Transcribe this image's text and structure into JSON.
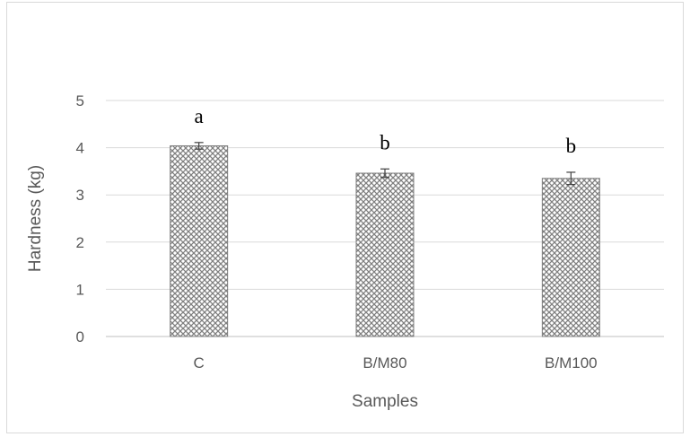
{
  "chart_data": {
    "type": "bar",
    "title": "",
    "xlabel": "Samples",
    "ylabel": "Hardness (kg)",
    "ylim": [
      0,
      5
    ],
    "yticks": [
      0,
      1,
      2,
      3,
      4,
      5
    ],
    "grid": true,
    "legend": "none",
    "categories": [
      "C",
      "B/M80",
      "B/M100"
    ],
    "values": [
      4.04,
      3.46,
      3.35
    ],
    "errors": [
      0.07,
      0.09,
      0.13
    ],
    "annotations": [
      "a",
      "b",
      "b"
    ],
    "bar_pattern": "crosshatch",
    "colors": {
      "bar_fill": "#ffffff",
      "bar_pattern": "#7f7f7f",
      "gridline": "#d9d9d9",
      "axis": "#bfbfbf",
      "text": "#595959"
    }
  }
}
